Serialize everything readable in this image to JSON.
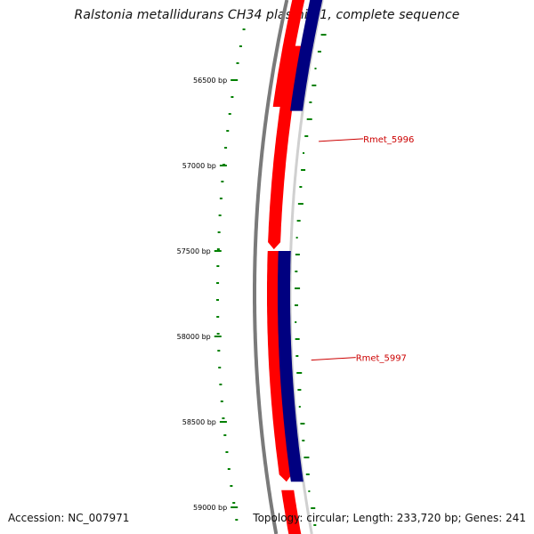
{
  "title": "Ralstonia metallidurans CH34 plasmid 1, complete sequence",
  "footer": {
    "accession": "Accession: NC_007971",
    "summary": "Topology: circular; Length: 233,720 bp; Genes: 241"
  },
  "position_ticks": [
    {
      "bp": 56500,
      "label": "56500 bp"
    },
    {
      "bp": 57000,
      "label": "57000 bp"
    },
    {
      "bp": 57500,
      "label": "57500 bp"
    },
    {
      "bp": 58000,
      "label": "58000 bp"
    },
    {
      "bp": 58500,
      "label": "58500 bp"
    },
    {
      "bp": 59000,
      "label": "59000 bp"
    }
  ],
  "genes": [
    {
      "name": "Rmet_5996",
      "start_bp": 56300,
      "end_bp": 57490,
      "color": "#ff0000",
      "labeled": true
    },
    {
      "name": "Rmet_5997",
      "start_bp": 57500,
      "end_bp": 58850,
      "color": "#ff0000",
      "labeled": true
    }
  ],
  "blast_hits": [
    {
      "start_bp": 56300,
      "end_bp": 56680,
      "color": "#000080"
    },
    {
      "start_bp": 57500,
      "end_bp": 58850,
      "color": "#000080"
    }
  ],
  "colors": {
    "backbone": "#7a7a7a",
    "gene_forward": "#ff0000",
    "blast_hit": "#000080",
    "gc_skew_ticks": "#008000",
    "label_text": "#cc0000"
  }
}
